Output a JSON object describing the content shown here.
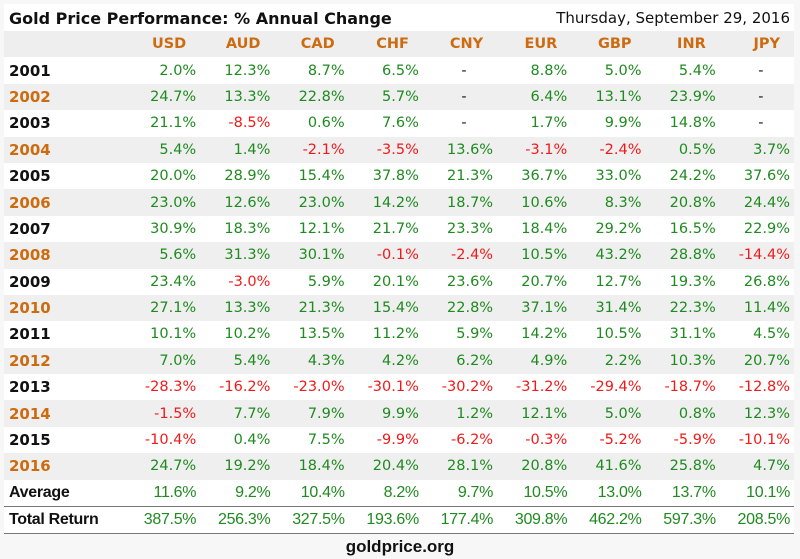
{
  "title": "Gold Price Performance: % Annual Change",
  "date": "Thursday, September 29, 2016",
  "columns": [
    "USD",
    "AUD",
    "CAD",
    "CHF",
    "CNY",
    "EUR",
    "GBP",
    "INR",
    "JPY"
  ],
  "rows": [
    {
      "label": "2001",
      "values": [
        "2.0%",
        "12.3%",
        "8.7%",
        "6.5%",
        "-",
        "8.8%",
        "5.0%",
        "5.4%",
        "-"
      ]
    },
    {
      "label": "2002",
      "values": [
        "24.7%",
        "13.3%",
        "22.8%",
        "5.7%",
        "-",
        "6.4%",
        "13.1%",
        "23.9%",
        "-"
      ]
    },
    {
      "label": "2003",
      "values": [
        "21.1%",
        "-8.5%",
        "0.6%",
        "7.6%",
        "-",
        "1.7%",
        "9.9%",
        "14.8%",
        "-"
      ]
    },
    {
      "label": "2004",
      "values": [
        "5.4%",
        "1.4%",
        "-2.1%",
        "-3.5%",
        "13.6%",
        "-3.1%",
        "-2.4%",
        "0.5%",
        "3.7%"
      ]
    },
    {
      "label": "2005",
      "values": [
        "20.0%",
        "28.9%",
        "15.4%",
        "37.8%",
        "21.3%",
        "36.7%",
        "33.0%",
        "24.2%",
        "37.6%"
      ]
    },
    {
      "label": "2006",
      "values": [
        "23.0%",
        "12.6%",
        "23.0%",
        "14.2%",
        "18.7%",
        "10.6%",
        "8.3%",
        "20.8%",
        "24.4%"
      ]
    },
    {
      "label": "2007",
      "values": [
        "30.9%",
        "18.3%",
        "12.1%",
        "21.7%",
        "23.3%",
        "18.4%",
        "29.2%",
        "16.5%",
        "22.9%"
      ]
    },
    {
      "label": "2008",
      "values": [
        "5.6%",
        "31.3%",
        "30.1%",
        "-0.1%",
        "-2.4%",
        "10.5%",
        "43.2%",
        "28.8%",
        "-14.4%"
      ]
    },
    {
      "label": "2009",
      "values": [
        "23.4%",
        "-3.0%",
        "5.9%",
        "20.1%",
        "23.6%",
        "20.7%",
        "12.7%",
        "19.3%",
        "26.8%"
      ]
    },
    {
      "label": "2010",
      "values": [
        "27.1%",
        "13.3%",
        "21.3%",
        "15.4%",
        "22.8%",
        "37.1%",
        "31.4%",
        "22.3%",
        "11.4%"
      ]
    },
    {
      "label": "2011",
      "values": [
        "10.1%",
        "10.2%",
        "13.5%",
        "11.2%",
        "5.9%",
        "14.2%",
        "10.5%",
        "31.1%",
        "4.5%"
      ]
    },
    {
      "label": "2012",
      "values": [
        "7.0%",
        "5.4%",
        "4.3%",
        "4.2%",
        "6.2%",
        "4.9%",
        "2.2%",
        "10.3%",
        "20.7%"
      ]
    },
    {
      "label": "2013",
      "values": [
        "-28.3%",
        "-16.2%",
        "-23.0%",
        "-30.1%",
        "-30.2%",
        "-31.2%",
        "-29.4%",
        "-18.7%",
        "-12.8%"
      ]
    },
    {
      "label": "2014",
      "values": [
        "-1.5%",
        "7.7%",
        "7.9%",
        "9.9%",
        "1.2%",
        "12.1%",
        "5.0%",
        "0.8%",
        "12.3%"
      ]
    },
    {
      "label": "2015",
      "values": [
        "-10.4%",
        "0.4%",
        "7.5%",
        "-9.9%",
        "-6.2%",
        "-0.3%",
        "-5.2%",
        "-5.9%",
        "-10.1%"
      ]
    },
    {
      "label": "2016",
      "values": [
        "24.7%",
        "19.2%",
        "18.4%",
        "20.4%",
        "28.1%",
        "20.8%",
        "41.6%",
        "25.8%",
        "4.7%"
      ]
    }
  ],
  "average": {
    "label": "Average",
    "values": [
      "11.6%",
      "9.2%",
      "10.4%",
      "8.2%",
      "9.7%",
      "10.5%",
      "13.0%",
      "13.7%",
      "10.1%"
    ]
  },
  "total": {
    "label": "Total Return",
    "values": [
      "387.5%",
      "256.3%",
      "327.5%",
      "193.6%",
      "177.4%",
      "309.8%",
      "462.2%",
      "597.3%",
      "208.5%"
    ]
  },
  "footer": "goldprice.org",
  "colors": {
    "positive": "#1f8a1f",
    "negative": "#f01a1a",
    "header": "#cc6b0f"
  }
}
